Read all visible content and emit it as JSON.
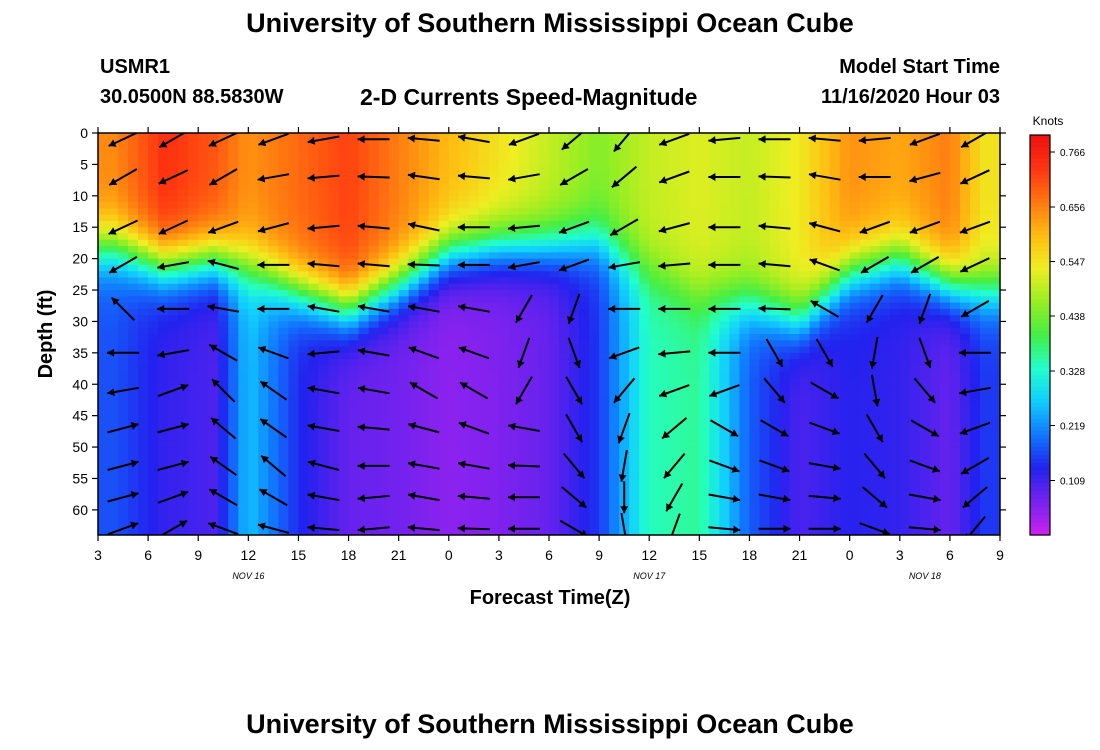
{
  "header": {
    "title": "University of Southern Mississippi Ocean Cube",
    "station_id": "USMR1",
    "station_coords": "30.0500N 88.5830W",
    "plot_title": "2-D Currents Speed-Magnitude",
    "model_label": "Model Start Time",
    "model_time": "11/16/2020 Hour 03"
  },
  "footer": {
    "title": "University of Southern Mississippi Ocean Cube"
  },
  "chart_data": {
    "type": "heatmap",
    "title": "2-D Currents Speed-Magnitude",
    "xlabel": "Forecast Time(Z)",
    "ylabel": "Depth (ft)",
    "x_tick_labels": [
      "3",
      "6",
      "9",
      "12",
      "15",
      "18",
      "21",
      "0",
      "3",
      "6",
      "9",
      "12",
      "15",
      "18",
      "21",
      "0",
      "3",
      "6",
      "9"
    ],
    "date_labels": [
      {
        "text": "NOV 16",
        "at_tick": 3
      },
      {
        "text": "NOV 17",
        "at_tick": 11
      },
      {
        "text": "NOV 18",
        "at_tick": 16.5
      }
    ],
    "forecast_hours_range": [
      0,
      54
    ],
    "y_ticks": [
      0,
      5,
      10,
      15,
      20,
      25,
      30,
      35,
      40,
      45,
      50,
      55,
      60
    ],
    "ylim": [
      0,
      64
    ],
    "y_inverted": true,
    "colorbar": {
      "title": "Knots",
      "tick_labels": [
        "0.766",
        "0.656",
        "0.547",
        "0.438",
        "0.328",
        "0.219",
        "0.109"
      ],
      "range": [
        0.0,
        0.8
      ],
      "colors": [
        "#cc22ee",
        "#7722ee",
        "#2222ee",
        "#1177ff",
        "#11ccff",
        "#22ffcc",
        "#44ee44",
        "#99ee22",
        "#eeee22",
        "#ffbb11",
        "#ff7711",
        "#ff3311",
        "#ee1111"
      ]
    },
    "columns": [
      {
        "h": 1,
        "surf": 0.65,
        "ml": 18,
        "deep": 0.17
      },
      {
        "h": 4,
        "surf": 0.74,
        "ml": 21,
        "deep": 0.12
      },
      {
        "h": 7,
        "surf": 0.7,
        "ml": 20,
        "deep": 0.1
      },
      {
        "h": 9,
        "surf": 0.64,
        "ml": 21,
        "deep": 0.26
      },
      {
        "h": 12,
        "surf": 0.68,
        "ml": 25,
        "deep": 0.14
      },
      {
        "h": 15,
        "surf": 0.72,
        "ml": 28,
        "deep": 0.08
      },
      {
        "h": 18,
        "surf": 0.66,
        "ml": 24,
        "deep": 0.07
      },
      {
        "h": 21,
        "surf": 0.6,
        "ml": 19,
        "deep": 0.05
      },
      {
        "h": 24,
        "surf": 0.55,
        "ml": 18,
        "deep": 0.06
      },
      {
        "h": 27,
        "surf": 0.5,
        "ml": 18,
        "deep": 0.08
      },
      {
        "h": 30,
        "surf": 0.45,
        "ml": 17,
        "deep": 0.15
      },
      {
        "h": 33,
        "surf": 0.5,
        "ml": 22,
        "deep": 0.34
      },
      {
        "h": 36,
        "surf": 0.52,
        "ml": 26,
        "deep": 0.36
      },
      {
        "h": 39,
        "surf": 0.5,
        "ml": 27,
        "deep": 0.18
      },
      {
        "h": 42,
        "surf": 0.54,
        "ml": 30,
        "deep": 0.1
      },
      {
        "h": 45,
        "surf": 0.64,
        "ml": 22,
        "deep": 0.13
      },
      {
        "h": 48,
        "surf": 0.62,
        "ml": 20,
        "deep": 0.12
      },
      {
        "h": 51,
        "surf": 0.66,
        "ml": 24,
        "deep": 0.08
      },
      {
        "h": 53,
        "surf": 0.55,
        "ml": 25,
        "deep": 0.15
      }
    ],
    "vectors": {
      "depths": [
        1,
        7,
        15,
        21,
        28,
        35,
        41,
        47,
        53,
        58,
        63
      ],
      "cols": [
        {
          "h": 1.5,
          "dir": [
            205,
            210,
            205,
            210,
            135,
            180,
            190,
            15,
            15,
            15,
            20
          ]
        },
        {
          "h": 4.5,
          "dir": [
            210,
            205,
            205,
            190,
            180,
            190,
            20,
            15,
            15,
            20,
            30
          ]
        },
        {
          "h": 7.5,
          "dir": [
            205,
            210,
            200,
            165,
            170,
            150,
            135,
            140,
            145,
            150,
            160
          ]
        },
        {
          "h": 10.5,
          "dir": [
            200,
            190,
            195,
            180,
            180,
            160,
            145,
            145,
            140,
            150,
            165
          ]
        },
        {
          "h": 13.5,
          "dir": [
            190,
            185,
            185,
            175,
            170,
            185,
            170,
            170,
            165,
            170,
            175
          ]
        },
        {
          "h": 16.5,
          "dir": [
            180,
            178,
            175,
            175,
            170,
            170,
            170,
            175,
            180,
            185,
            185
          ]
        },
        {
          "h": 19.5,
          "dir": [
            175,
            172,
            168,
            178,
            170,
            160,
            150,
            165,
            170,
            170,
            175
          ]
        },
        {
          "h": 22.5,
          "dir": [
            170,
            175,
            180,
            180,
            170,
            160,
            150,
            160,
            170,
            175,
            178
          ]
        },
        {
          "h": 25.5,
          "dir": [
            200,
            190,
            185,
            190,
            240,
            250,
            240,
            170,
            178,
            180,
            180
          ]
        },
        {
          "h": 28.5,
          "dir": [
            220,
            210,
            200,
            200,
            250,
            290,
            300,
            300,
            310,
            320,
            330
          ]
        },
        {
          "h": 31.5,
          "dir": [
            230,
            220,
            210,
            190,
            180,
            200,
            230,
            250,
            260,
            270,
            280
          ]
        },
        {
          "h": 34.5,
          "dir": [
            200,
            200,
            195,
            185,
            180,
            185,
            200,
            220,
            230,
            240,
            250
          ]
        },
        {
          "h": 37.5,
          "dir": [
            185,
            180,
            180,
            180,
            180,
            180,
            200,
            330,
            340,
            350,
            355
          ]
        },
        {
          "h": 40.5,
          "dir": [
            180,
            178,
            175,
            175,
            178,
            300,
            310,
            330,
            340,
            350,
            0
          ]
        },
        {
          "h": 43.5,
          "dir": [
            175,
            170,
            165,
            160,
            150,
            300,
            330,
            340,
            350,
            355,
            0
          ]
        },
        {
          "h": 46.5,
          "dir": [
            185,
            180,
            200,
            210,
            240,
            260,
            280,
            300,
            310,
            320,
            340
          ]
        },
        {
          "h": 49.5,
          "dir": [
            200,
            195,
            200,
            210,
            250,
            290,
            310,
            330,
            340,
            350,
            355
          ]
        },
        {
          "h": 52.5,
          "dir": [
            210,
            205,
            200,
            205,
            210,
            180,
            190,
            200,
            210,
            220,
            230
          ]
        }
      ]
    }
  }
}
